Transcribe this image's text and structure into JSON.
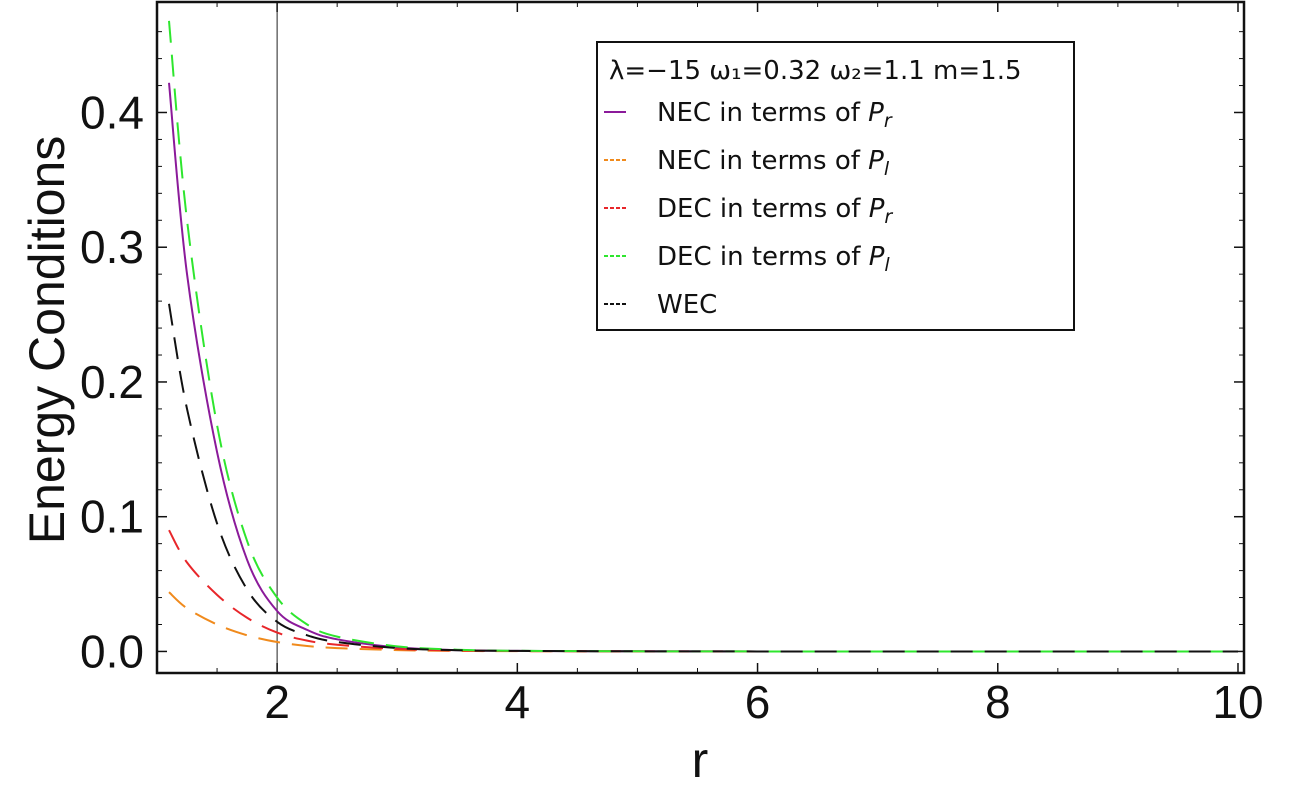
{
  "chart_data": {
    "type": "line",
    "xlabel": "r",
    "ylabel": "Energy Conditions",
    "xlim": [
      1,
      10.05
    ],
    "ylim": [
      -0.016,
      0.482
    ],
    "x_ticks": [
      2,
      4,
      6,
      8,
      10
    ],
    "x_tick_labels": [
      "2",
      "4",
      "6",
      "8",
      "10"
    ],
    "y_ticks": [
      0.0,
      0.1,
      0.2,
      0.3,
      0.4
    ],
    "y_tick_labels": [
      "0.0",
      "0.1",
      "0.2",
      "0.3",
      "0.4"
    ],
    "vertical_reference_line": 2,
    "legend": {
      "position": "top-right",
      "title": "λ=−15 ω₁=0.32 ω₂=1.1 m=1.5"
    },
    "x": [
      1.1,
      1.25,
      1.5,
      1.75,
      2.0,
      2.25,
      2.5,
      3.0,
      3.5,
      4.0,
      5.0,
      6.0,
      7.0,
      8.0,
      9.0,
      10.0
    ],
    "series": [
      {
        "name": "NEC in terms of Pr",
        "label_main": "NEC in terms of ",
        "label_sym": "P",
        "label_sub": "r",
        "color": "#8b1a9a",
        "dashed": false,
        "values": [
          0.422,
          0.28,
          0.148,
          0.068,
          0.03,
          0.016,
          0.009,
          0.003,
          0.001,
          0.0004,
          0.0001,
          0.0,
          0.0,
          0.0,
          0.0,
          0.0
        ]
      },
      {
        "name": "NEC in terms of Pl",
        "label_main": "NEC in terms of ",
        "label_sym": "P",
        "label_sub": "l",
        "color": "#f08a1c",
        "dashed": true,
        "values": [
          0.044,
          0.032,
          0.02,
          0.012,
          0.007,
          0.004,
          0.0025,
          0.001,
          0.0004,
          0.0002,
          0.0,
          0.0,
          0.0,
          0.0,
          0.0,
          0.0
        ]
      },
      {
        "name": "DEC in terms of Pr",
        "label_main": "DEC in terms of ",
        "label_sym": "P",
        "label_sub": "r",
        "color": "#e8262a",
        "dashed": true,
        "values": [
          0.09,
          0.066,
          0.042,
          0.025,
          0.014,
          0.008,
          0.005,
          0.0018,
          0.0007,
          0.0003,
          0.0001,
          0.0,
          0.0,
          0.0,
          0.0,
          0.0
        ]
      },
      {
        "name": "DEC in terms of Pl",
        "label_main": "DEC in terms of ",
        "label_sym": "P",
        "label_sub": "l",
        "color": "#2ee62e",
        "dashed": true,
        "values": [
          0.468,
          0.32,
          0.168,
          0.082,
          0.04,
          0.02,
          0.011,
          0.0038,
          0.0013,
          0.0005,
          0.0001,
          0.0,
          0.0,
          0.0,
          0.0,
          0.0
        ]
      },
      {
        "name": "WEC",
        "label_main": "WEC",
        "label_sym": "",
        "label_sub": "",
        "color": "#111111",
        "dashed": true,
        "values": [
          0.258,
          0.18,
          0.095,
          0.046,
          0.022,
          0.012,
          0.007,
          0.0025,
          0.0009,
          0.0004,
          0.0001,
          0.0,
          0.0,
          0.0,
          0.0,
          0.0
        ]
      }
    ]
  }
}
